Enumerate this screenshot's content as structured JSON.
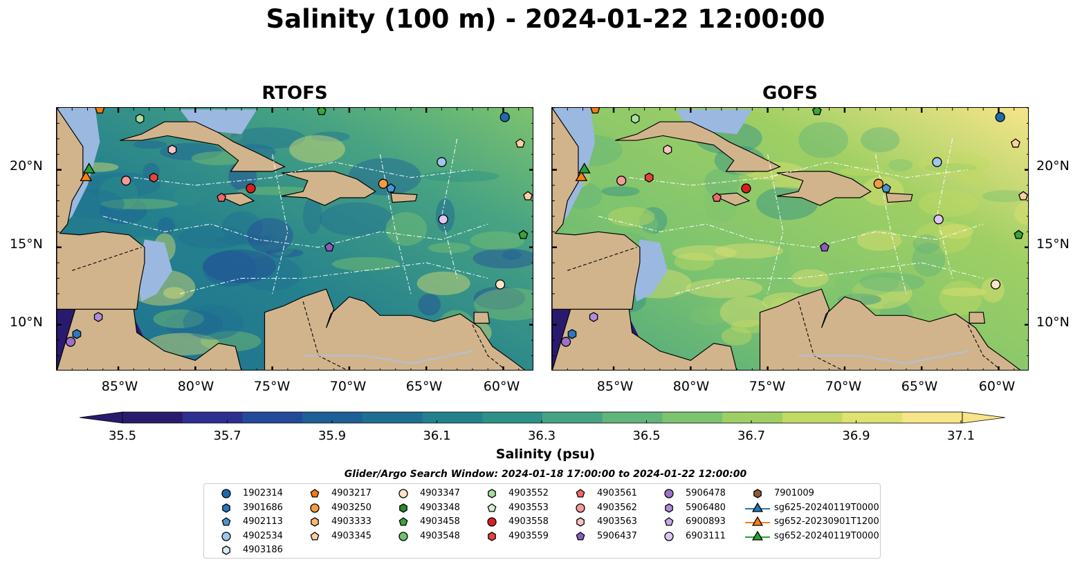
{
  "title": "Salinity (100 m) - 2024-01-22 12:00:00",
  "panels": [
    {
      "title": "RTOFS",
      "tone": "fresh"
    },
    {
      "title": "GOFS",
      "tone": "salty"
    }
  ],
  "lat_labels": [
    "20°N",
    "15°N",
    "10°N"
  ],
  "lon_labels": [
    "85°W",
    "80°W",
    "75°W",
    "70°W",
    "65°W",
    "60°W"
  ],
  "colorbar": {
    "label": "Salinity (psu)",
    "ticks": [
      "35.5",
      "35.7",
      "35.9",
      "36.1",
      "36.3",
      "36.5",
      "36.7",
      "36.9",
      "37.1"
    ],
    "colors": [
      "#2a1a6e",
      "#2c2f8f",
      "#234a99",
      "#1d5f96",
      "#1f6f92",
      "#24808d",
      "#2e9188",
      "#47a382",
      "#61b47a",
      "#7dc36f",
      "#9fcf64",
      "#c2da63",
      "#dfe170",
      "#f6e589"
    ]
  },
  "legend": {
    "title": "Glider/Argo Search Window: 2024-01-18 17:00:00 to 2024-01-22 12:00:00",
    "items": [
      {
        "label": "1902314",
        "marker": "circle",
        "color": "#1f6aad"
      },
      {
        "label": "3901686",
        "marker": "hexagon",
        "color": "#2a79c0"
      },
      {
        "label": "4902113",
        "marker": "pentagon",
        "color": "#4a95d4"
      },
      {
        "label": "4902534",
        "marker": "circle",
        "color": "#9dc8ea"
      },
      {
        "label": "4903186",
        "marker": "hexagon",
        "color": "#d6ebf8"
      },
      {
        "label": "4903217",
        "marker": "pentagon",
        "color": "#f07c12"
      },
      {
        "label": "4903250",
        "marker": "circle",
        "color": "#f59a42"
      },
      {
        "label": "4903333",
        "marker": "hexagon",
        "color": "#fbb772"
      },
      {
        "label": "4903345",
        "marker": "pentagon",
        "color": "#fdcfa0"
      },
      {
        "label": "4903347",
        "marker": "circle",
        "color": "#fde3c8"
      },
      {
        "label": "4903348",
        "marker": "hexagon",
        "color": "#2a8a2a"
      },
      {
        "label": "4903458",
        "marker": "pentagon",
        "color": "#3aa33a"
      },
      {
        "label": "4903548",
        "marker": "circle",
        "color": "#6cc26c"
      },
      {
        "label": "4903552",
        "marker": "hexagon",
        "color": "#a8dea0"
      },
      {
        "label": "4903553",
        "marker": "pentagon",
        "color": "#d6f1cf"
      },
      {
        "label": "4903558",
        "marker": "circle",
        "color": "#d62020"
      },
      {
        "label": "4903559",
        "marker": "hexagon",
        "color": "#e3453b"
      },
      {
        "label": "4903561",
        "marker": "pentagon",
        "color": "#ee6a68"
      },
      {
        "label": "4903562",
        "marker": "circle",
        "color": "#f49a98"
      },
      {
        "label": "4903563",
        "marker": "hexagon",
        "color": "#f8c3c1"
      },
      {
        "label": "5906437",
        "marker": "pentagon",
        "color": "#8a5cc0"
      },
      {
        "label": "5906478",
        "marker": "circle",
        "color": "#9a72cc"
      },
      {
        "label": "5906480",
        "marker": "hexagon",
        "color": "#b08cda"
      },
      {
        "label": "6900893",
        "marker": "pentagon",
        "color": "#c6aae6"
      },
      {
        "label": "6903111",
        "marker": "circle",
        "color": "#dcc8f2"
      },
      {
        "label": "7901009",
        "marker": "hexagon",
        "color": "#8b5a3c"
      },
      {
        "label": "sg625-20240119T0000",
        "marker": "triangle",
        "color": "#1f77b4"
      },
      {
        "label": "sg652-20230901T1200",
        "marker": "triangle",
        "color": "#ff7f0e"
      },
      {
        "label": "sg652-20240119T0000",
        "marker": "triangle",
        "color": "#2ca02c"
      }
    ]
  }
}
